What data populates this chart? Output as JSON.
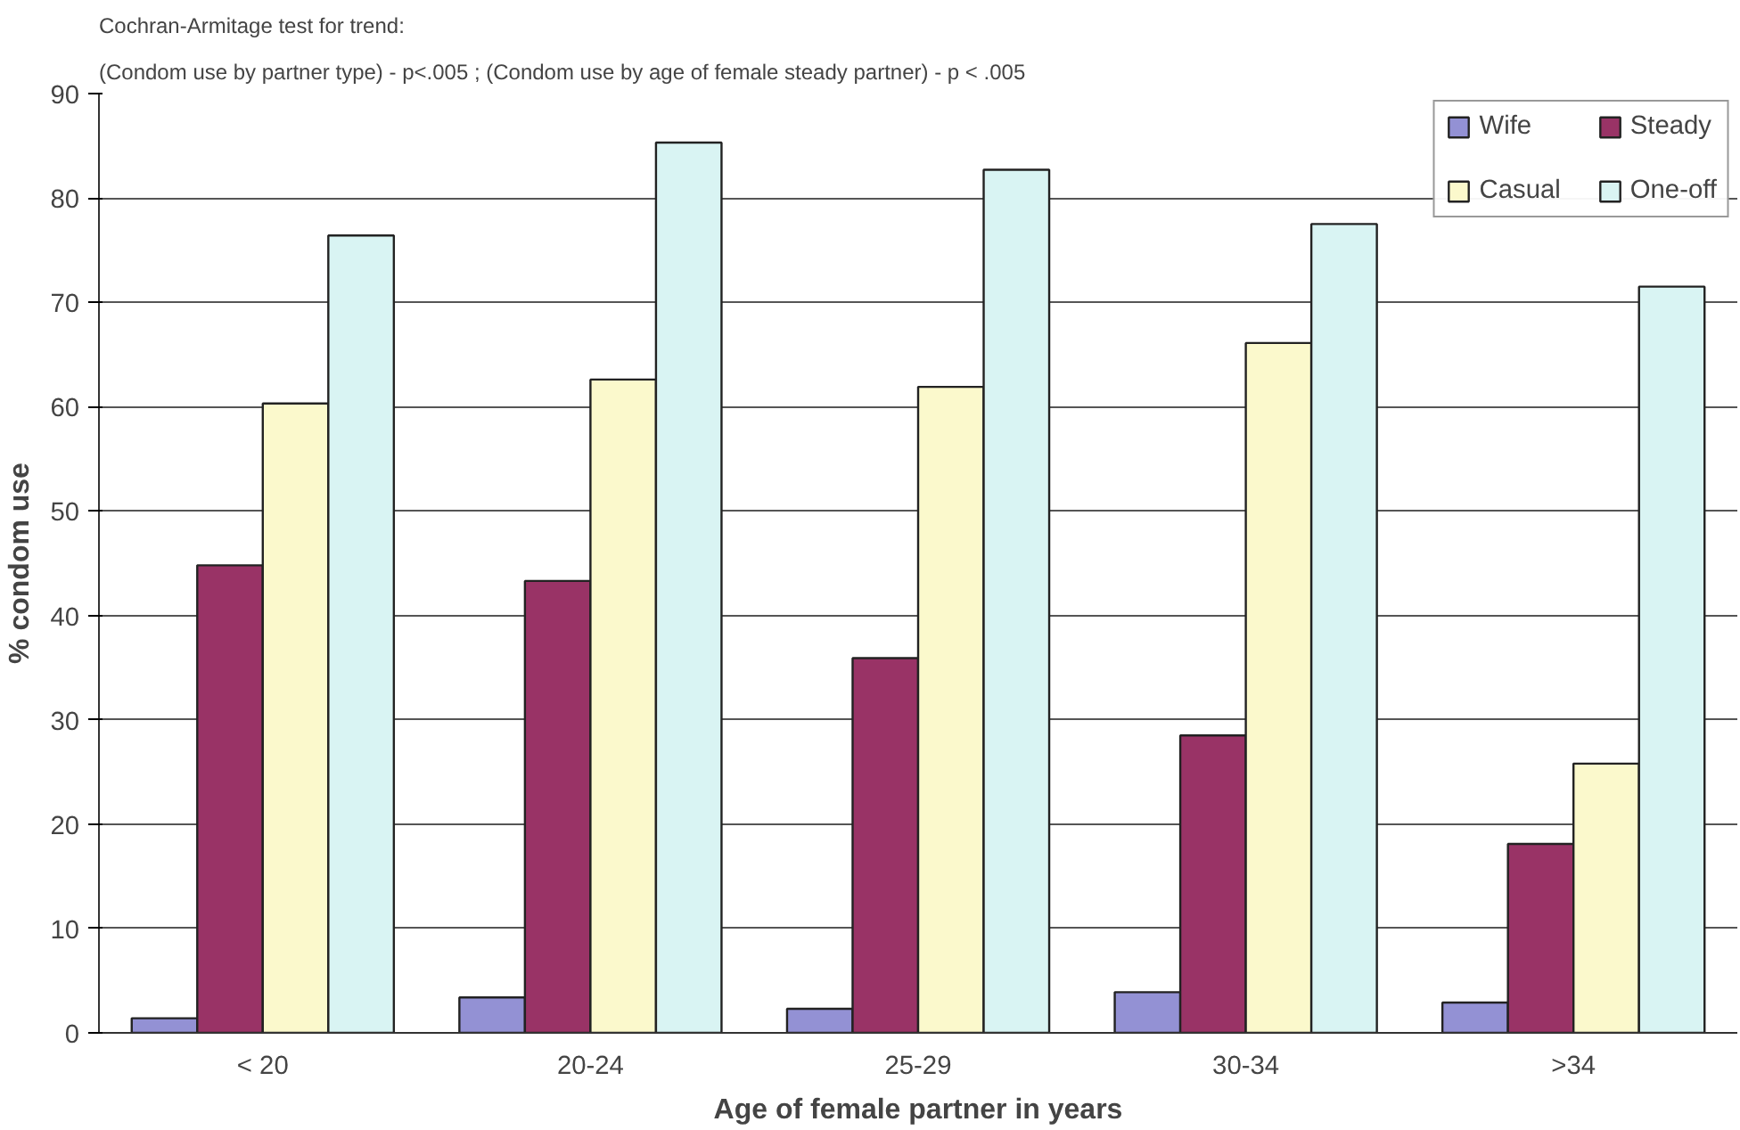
{
  "chart_data": {
    "type": "bar",
    "title": "Cochran-Armitage test for trend:",
    "subtitle": "(Condom use by partner type) - p<.005 ;  (Condom use by age of female steady partner) - p < .005",
    "xlabel": "Age of female partner in years",
    "ylabel": "% condom use",
    "categories": [
      "< 20",
      "20-24",
      "25-29",
      "30-34",
      ">34"
    ],
    "series": [
      {
        "name": "Wife",
        "color": "#9391d4",
        "values": [
          1.4,
          3.4,
          2.3,
          3.9,
          2.9
        ]
      },
      {
        "name": "Steady",
        "color": "#993366",
        "values": [
          44.8,
          43.3,
          35.9,
          28.5,
          18.1
        ]
      },
      {
        "name": "Casual",
        "color": "#fbf9cc",
        "values": [
          60.3,
          62.6,
          61.9,
          66.1,
          25.8
        ]
      },
      {
        "name": "One-off",
        "color": "#d9f4f3",
        "values": [
          76.4,
          85.3,
          82.7,
          77.5,
          71.5
        ]
      }
    ],
    "ylim": [
      0,
      90
    ],
    "yticks": [
      0,
      10,
      20,
      30,
      40,
      50,
      60,
      70,
      80,
      90
    ],
    "grid": "y",
    "legend": "top right"
  }
}
